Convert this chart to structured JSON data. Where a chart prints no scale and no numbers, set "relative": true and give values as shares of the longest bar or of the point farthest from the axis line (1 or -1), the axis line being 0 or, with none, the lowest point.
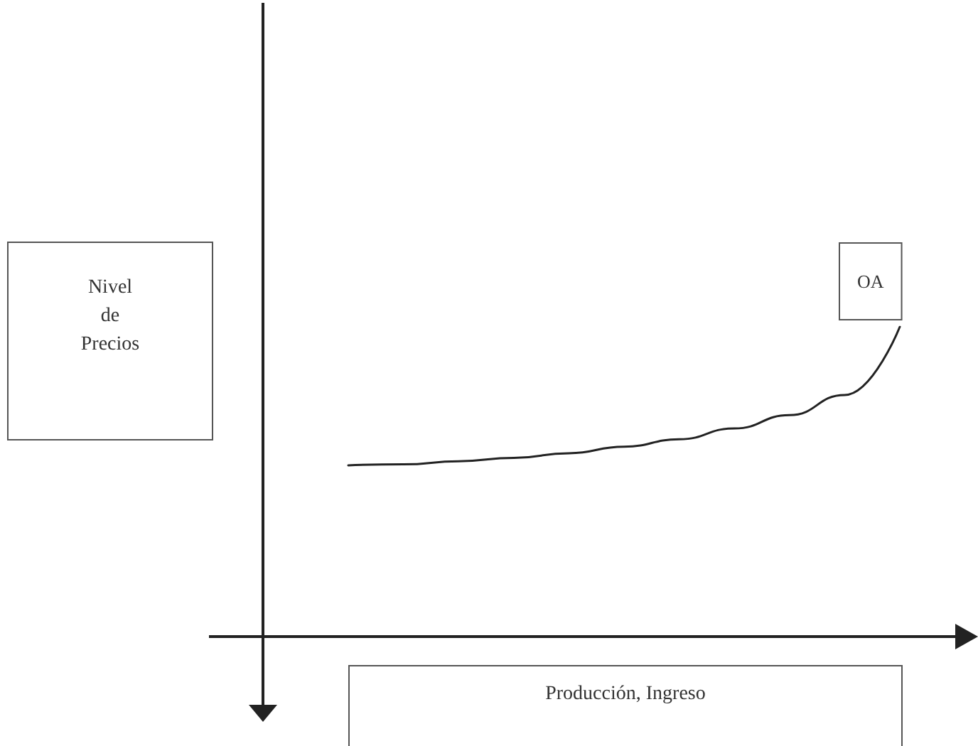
{
  "chart_data": {
    "type": "line",
    "xlabel": "Producción, Ingreso",
    "annotations": [
      "Nivel de Precios"
    ],
    "relative": true,
    "categories": [
      null,
      null,
      null,
      null,
      null,
      null,
      null,
      null,
      null,
      null,
      null
    ],
    "series": [
      {
        "name": "OA",
        "color": "#222222",
        "values": [
          0.553,
          0.556,
          0.566,
          0.577,
          0.592,
          0.613,
          0.637,
          0.672,
          0.715,
          0.78,
          1
        ]
      }
    ],
    "marker": "none",
    "grid": false
  }
}
